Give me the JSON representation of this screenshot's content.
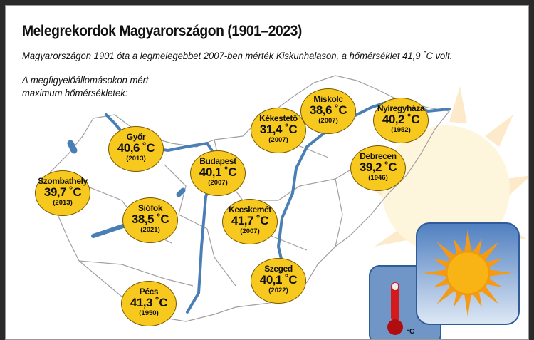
{
  "title": "Melegrekordok Magyarországon (1901–2023)",
  "subtitle": "Magyarországon 1901 óta a legmelegebbet 2007-ben mérték Kiskunhalason, a hőmérséklet 41,9 ˚C volt.",
  "legend": {
    "line1": "A megfigyelőállomásokon mért",
    "line2": "maximum hőmérsékletek:"
  },
  "colors": {
    "marker": "#f7c81e",
    "river": "#4a7fb5",
    "border": "#999999",
    "sun": "#fbe7a6"
  },
  "stations": [
    {
      "name": "Győr",
      "temp": "40,6 ˚C",
      "year": "(2013)"
    },
    {
      "name": "Szombathely",
      "temp": "39,7 ˚C",
      "year": "(2013)"
    },
    {
      "name": "Budapest",
      "temp": "40,1 ˚C",
      "year": "(2007)"
    },
    {
      "name": "Siófok",
      "temp": "38,5 ˚C",
      "year": "(2021)"
    },
    {
      "name": "Kecskemét",
      "temp": "41,7 ˚C",
      "year": "(2007)"
    },
    {
      "name": "Pécs",
      "temp": "41,3 ˚C",
      "year": "(1950)"
    },
    {
      "name": "Szeged",
      "temp": "40,1 ˚C",
      "year": "(2022)"
    },
    {
      "name": "Kékestető",
      "temp": "31,4 ˚C",
      "year": "(2007)"
    },
    {
      "name": "Miskolc",
      "temp": "38,6 ˚C",
      "year": "(2007)"
    },
    {
      "name": "Nyíregyháza",
      "temp": "40,2 ˚C",
      "year": "(1952)"
    },
    {
      "name": "Debrecen",
      "temp": "39,2 ˚C",
      "year": "(1946)"
    }
  ],
  "icons": {
    "sun": "sun-icon",
    "thermometer": "thermometer-icon",
    "thermometer_unit": "°C"
  }
}
